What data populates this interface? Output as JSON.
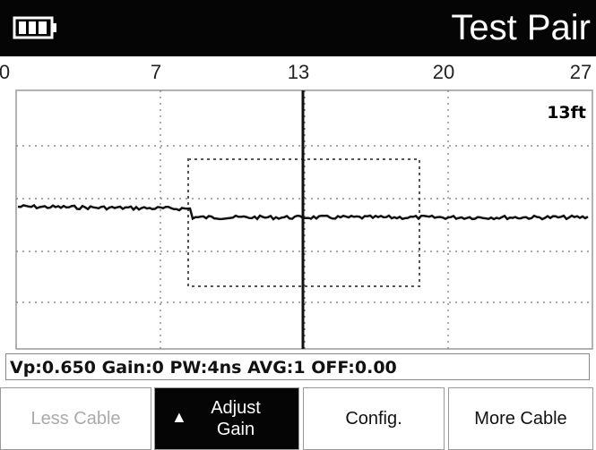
{
  "header": {
    "title": "Test Pair"
  },
  "scale": {
    "labels": [
      "0",
      "7",
      "13",
      "20",
      "27"
    ]
  },
  "plot": {
    "cursor_label": "13ft"
  },
  "status": "Vp:0.650 Gain:0 PW:4ns AVG:1 OFF:0.00",
  "buttons": [
    "Less Cable",
    "Adjust Gain",
    "Config.",
    "More Cable"
  ]
}
